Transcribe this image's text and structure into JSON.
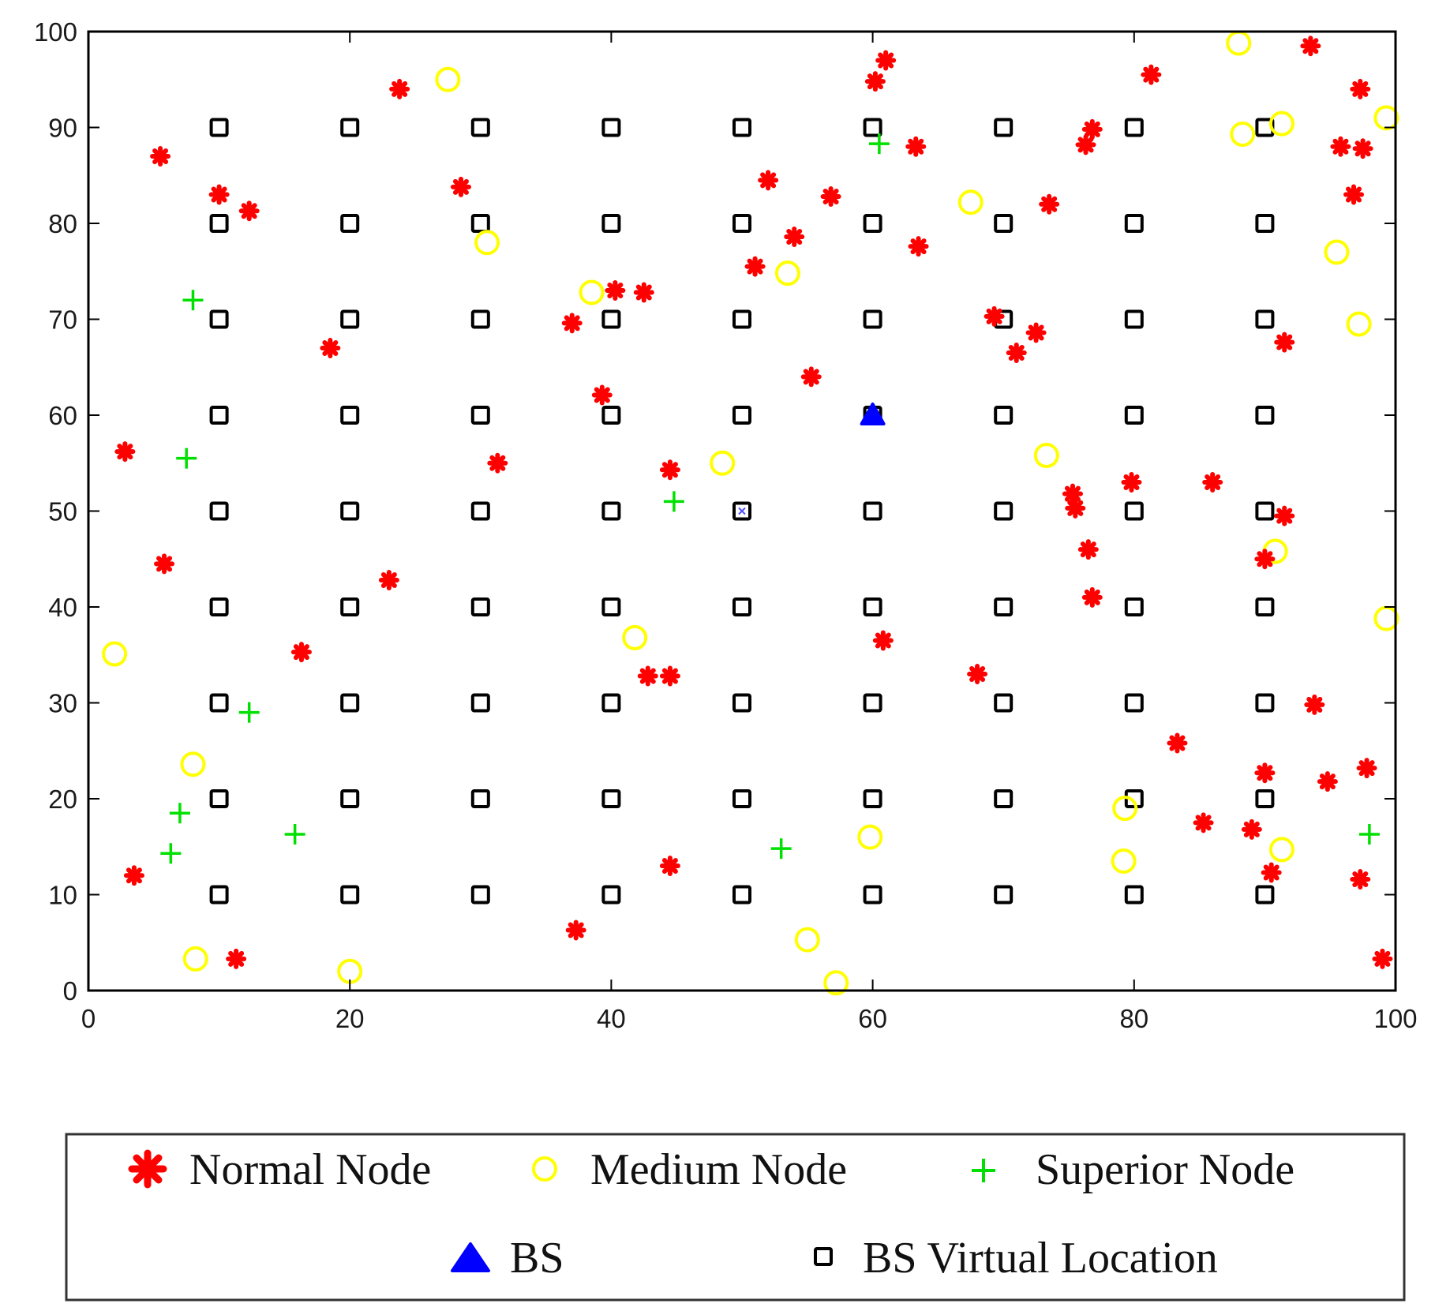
{
  "chart_data": {
    "type": "scatter",
    "title": "",
    "xlabel": "",
    "ylabel": "",
    "xlim": [
      0,
      100
    ],
    "ylim": [
      0,
      100
    ],
    "x_ticks": [
      0,
      20,
      40,
      60,
      80,
      100
    ],
    "y_ticks": [
      0,
      10,
      20,
      30,
      40,
      50,
      60,
      70,
      80,
      90,
      100
    ],
    "x_tick_labels": [
      "0",
      "20",
      "40",
      "60",
      "80",
      "100"
    ],
    "y_tick_labels": [
      "0",
      "10",
      "20",
      "30",
      "40",
      "50",
      "60",
      "70",
      "80",
      "90",
      "100"
    ],
    "grid": false,
    "legend_position": "bottom",
    "series": [
      {
        "name": "Normal Node",
        "marker": "asterisk",
        "color": "#ff0000",
        "points": [
          [
            5.5,
            87
          ],
          [
            10,
            83
          ],
          [
            12.3,
            81.3
          ],
          [
            23.8,
            94
          ],
          [
            28.5,
            83.8
          ],
          [
            18.5,
            67
          ],
          [
            2.8,
            56.2
          ],
          [
            5.8,
            44.5
          ],
          [
            16.3,
            35.3
          ],
          [
            23,
            42.8
          ],
          [
            31.3,
            55
          ],
          [
            37,
            69.6
          ],
          [
            40.3,
            73
          ],
          [
            42.5,
            72.8
          ],
          [
            39.3,
            62.1
          ],
          [
            44.5,
            54.3
          ],
          [
            42.8,
            32.8
          ],
          [
            44.5,
            32.8
          ],
          [
            44.5,
            13
          ],
          [
            37.3,
            6.3
          ],
          [
            11.3,
            3.3
          ],
          [
            3.5,
            12
          ],
          [
            51,
            75.5
          ],
          [
            52,
            84.5
          ],
          [
            54,
            78.6
          ],
          [
            55.3,
            64
          ],
          [
            56.8,
            82.8
          ],
          [
            60.2,
            94.8
          ],
          [
            61,
            97
          ],
          [
            63.3,
            88
          ],
          [
            63.5,
            77.6
          ],
          [
            60.8,
            36.5
          ],
          [
            68,
            33
          ],
          [
            69.3,
            70.3
          ],
          [
            71,
            66.5
          ],
          [
            72.5,
            68.6
          ],
          [
            73.5,
            82
          ],
          [
            75.3,
            51.8
          ],
          [
            75.5,
            50.3
          ],
          [
            76.3,
            88.2
          ],
          [
            76.8,
            89.8
          ],
          [
            76.5,
            46
          ],
          [
            76.8,
            41
          ],
          [
            79.8,
            53
          ],
          [
            81.3,
            95.5
          ],
          [
            83.3,
            25.8
          ],
          [
            85.3,
            17.5
          ],
          [
            86,
            53
          ],
          [
            89,
            16.8
          ],
          [
            90,
            22.7
          ],
          [
            90.5,
            12.3
          ],
          [
            90,
            45
          ],
          [
            91.5,
            49.5
          ],
          [
            91.5,
            67.6
          ],
          [
            93.5,
            98.5
          ],
          [
            93.8,
            29.8
          ],
          [
            94.8,
            21.8
          ],
          [
            95.8,
            88
          ],
          [
            96.8,
            83
          ],
          [
            97.3,
            94
          ],
          [
            97.5,
            87.8
          ],
          [
            97.3,
            11.6
          ],
          [
            97.8,
            23.2
          ],
          [
            99,
            3.3
          ]
        ]
      },
      {
        "name": "Medium Node",
        "marker": "circle",
        "color": "#ffff00",
        "points": [
          [
            27.5,
            95
          ],
          [
            30.5,
            78
          ],
          [
            38.5,
            72.8
          ],
          [
            53.5,
            74.8
          ],
          [
            48.5,
            55
          ],
          [
            41.8,
            36.8
          ],
          [
            2,
            35.1
          ],
          [
            8,
            23.6
          ],
          [
            8.2,
            3.3
          ],
          [
            20,
            2
          ],
          [
            55,
            5.3
          ],
          [
            57.2,
            0.8
          ],
          [
            59.8,
            16
          ],
          [
            67.5,
            82.2
          ],
          [
            73.3,
            55.8
          ],
          [
            79.3,
            19
          ],
          [
            79.2,
            13.5
          ],
          [
            88,
            98.8
          ],
          [
            88.3,
            89.3
          ],
          [
            91.3,
            90.4
          ],
          [
            90.8,
            45.8
          ],
          [
            91.3,
            14.7
          ],
          [
            95.5,
            77
          ],
          [
            97.2,
            69.5
          ],
          [
            99.3,
            91
          ],
          [
            99.3,
            38.8
          ]
        ]
      },
      {
        "name": "Superior Node",
        "marker": "plus",
        "color": "#00e000",
        "points": [
          [
            8,
            72
          ],
          [
            7.5,
            55.5
          ],
          [
            12.3,
            29
          ],
          [
            7,
            18.5
          ],
          [
            6.3,
            14.3
          ],
          [
            15.8,
            16.3
          ],
          [
            44.8,
            51
          ],
          [
            53,
            14.8
          ],
          [
            60.5,
            88.3
          ],
          [
            98,
            16.3
          ]
        ]
      },
      {
        "name": "BS",
        "marker": "triangle",
        "color": "#0000ff",
        "points": [
          [
            60,
            60
          ]
        ]
      },
      {
        "name": "BS Virtual Location",
        "marker": "square",
        "color": "#000000",
        "grid_x": [
          10,
          20,
          30,
          40,
          50,
          60,
          70,
          80,
          90
        ],
        "grid_y": [
          10,
          20,
          30,
          40,
          50,
          60,
          70,
          80,
          90
        ]
      }
    ],
    "annotations": [
      {
        "x": 50,
        "y": 50,
        "marker": "small-x",
        "color": "#5050ff"
      }
    ]
  },
  "legend": {
    "normal_label": "Normal Node",
    "medium_label": "Medium Node",
    "superior_label": "Superior Node",
    "bs_label": "BS",
    "virtual_label": "BS Virtual Location"
  },
  "colors": {
    "axis": "#000000",
    "normal": "#ff0000",
    "medium": "#ffff00",
    "superior": "#00e000",
    "bs": "#0000ff",
    "virtual": "#000000"
  }
}
